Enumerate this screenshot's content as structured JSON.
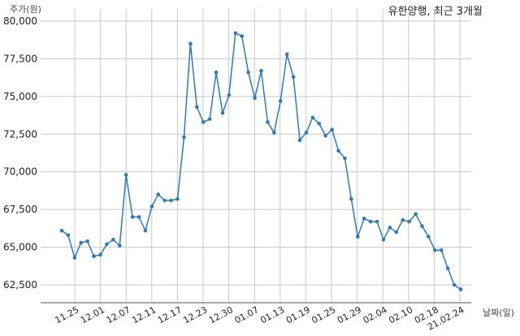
{
  "chart_data": {
    "type": "line",
    "title": "유한양행, 최근 3개월",
    "ylabel": "주가(원)",
    "xlabel": "날짜(일)",
    "ylim": [
      61250,
      80000
    ],
    "yticks": [
      62500,
      65000,
      67500,
      70000,
      72500,
      75000,
      77500,
      80000
    ],
    "ytick_labels": [
      "62,500",
      "65,000",
      "67,500",
      "70,000",
      "72,500",
      "75,000",
      "77,500",
      "80,000"
    ],
    "xtick_labels": [
      "11.25",
      "12.01",
      "12.07",
      "12.11",
      "12.17",
      "12.23",
      "12.30",
      "01.07",
      "01.13",
      "01.19",
      "01.25",
      "01.29",
      "02.04",
      "02.10",
      "02.18",
      "21.02.24"
    ],
    "grid": true,
    "color": "#2e7ab6",
    "series": [
      {
        "values": [
          66100,
          65800,
          64300,
          65300,
          65400,
          64400,
          64500,
          65200,
          65500,
          65100,
          69800,
          67000,
          67000,
          66100,
          67700,
          68500,
          68100,
          68100,
          68200,
          72300,
          78500,
          74300,
          73300,
          73500,
          76600,
          73900,
          75100,
          79200,
          79000,
          76600,
          74900,
          76700,
          73300,
          72600,
          74700,
          77800,
          76300,
          72100,
          72600,
          73600,
          73200,
          72400,
          72800,
          71400,
          70900,
          68200,
          65700,
          66900,
          66700,
          66700,
          65500,
          66300,
          66000,
          66800,
          66700,
          67200,
          66400,
          65700,
          64800,
          64800,
          63600,
          62500,
          62200
        ]
      }
    ]
  }
}
